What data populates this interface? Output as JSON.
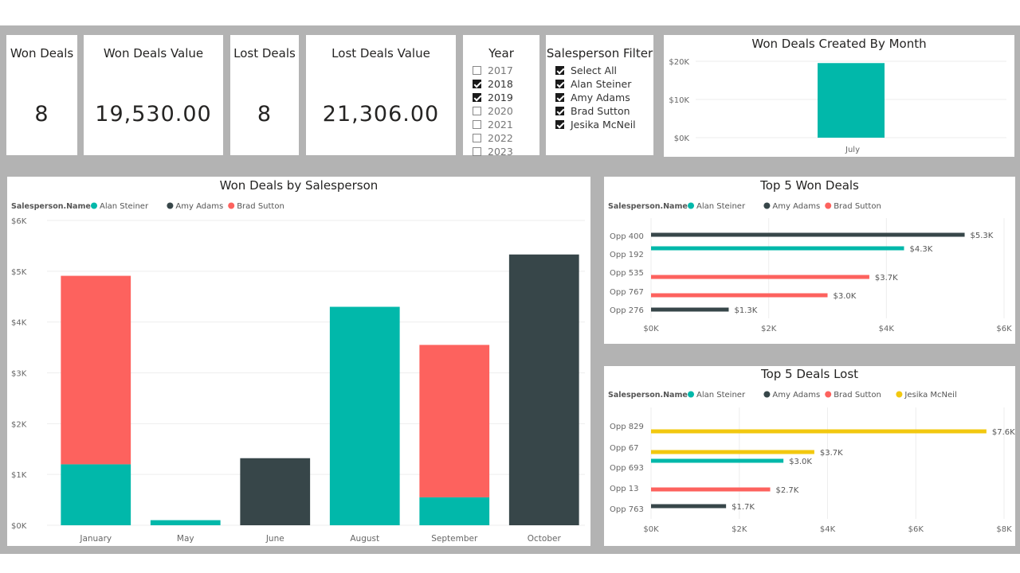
{
  "colors": {
    "alan": "#01b8aa",
    "amy": "#374649",
    "brad": "#fd625e",
    "jesika": "#f2c80f"
  },
  "kpis": {
    "won_deals": {
      "title": "Won Deals",
      "value": "8"
    },
    "won_value": {
      "title": "Won Deals Value",
      "value": "19,530.00"
    },
    "lost_deals": {
      "title": "Lost Deals",
      "value": "8"
    },
    "lost_value": {
      "title": "Lost Deals Value",
      "value": "21,306.00"
    }
  },
  "year_slicer": {
    "title": "Year",
    "items": [
      {
        "label": "2017",
        "checked": false
      },
      {
        "label": "2018",
        "checked": true
      },
      {
        "label": "2019",
        "checked": true
      },
      {
        "label": "2020",
        "checked": false
      },
      {
        "label": "2021",
        "checked": false
      },
      {
        "label": "2022",
        "checked": false
      },
      {
        "label": "2023",
        "checked": false
      }
    ]
  },
  "salesperson_slicer": {
    "title": "Salesperson Filter",
    "items": [
      {
        "label": "Select All",
        "checked": true
      },
      {
        "label": "Alan Steiner",
        "checked": true
      },
      {
        "label": "Amy Adams",
        "checked": true
      },
      {
        "label": "Brad Sutton",
        "checked": true
      },
      {
        "label": "Jesika McNeil",
        "checked": true
      }
    ]
  },
  "chart_data": [
    {
      "id": "monthly",
      "type": "bar",
      "title": "Won Deals Created By Month",
      "categories": [
        "July"
      ],
      "values": [
        19530
      ],
      "ylim": [
        0,
        20000
      ],
      "yticks": [
        0,
        10000,
        20000
      ],
      "ytick_labels": [
        "$0K",
        "$10K",
        "$20K"
      ]
    },
    {
      "id": "salesperson",
      "type": "bar",
      "stacked": true,
      "title": "Won Deals by  Salesperson",
      "legend_title": "Salesperson.Name",
      "categories": [
        "January",
        "May",
        "June",
        "August",
        "September",
        "October"
      ],
      "series": [
        {
          "name": "Alan Steiner",
          "color_key": "alan",
          "values": [
            1200,
            100,
            0,
            4300,
            550,
            0
          ]
        },
        {
          "name": "Amy Adams",
          "color_key": "amy",
          "values": [
            0,
            0,
            1320,
            0,
            0,
            5330
          ]
        },
        {
          "name": "Brad Sutton",
          "color_key": "brad",
          "values": [
            3710,
            0,
            0,
            0,
            3000,
            0
          ]
        }
      ],
      "ylim": [
        0,
        6000
      ],
      "yticks": [
        0,
        1000,
        2000,
        3000,
        4000,
        5000,
        6000
      ],
      "ytick_labels": [
        "$0K",
        "$1K",
        "$2K",
        "$3K",
        "$4K",
        "$5K",
        "$6K"
      ]
    },
    {
      "id": "top_won",
      "type": "bar",
      "orientation": "horizontal",
      "title": "Top 5 Won Deals",
      "legend_title": "Salesperson.Name",
      "legend": [
        {
          "name": "Alan Steiner",
          "color_key": "alan"
        },
        {
          "name": "Amy Adams",
          "color_key": "amy"
        },
        {
          "name": "Brad Sutton",
          "color_key": "brad"
        }
      ],
      "categories": [
        "Opp 400",
        "Opp 192",
        "Opp 535",
        "Opp 767",
        "Opp 276"
      ],
      "bars": [
        {
          "category": "Opp 400",
          "color_key": "amy",
          "value": 5330,
          "label": "$5.3K"
        },
        {
          "category": "Opp 192",
          "color_key": "alan",
          "value": 4300,
          "label": "$4.3K"
        },
        {
          "category": "Opp 535",
          "color_key": "brad",
          "value": 3710,
          "label": "$3.7K"
        },
        {
          "category": "Opp 767",
          "color_key": "brad",
          "value": 3000,
          "label": "$3.0K"
        },
        {
          "category": "Opp 276",
          "color_key": "amy",
          "value": 1320,
          "label": "$1.3K"
        }
      ],
      "xlim": [
        0,
        6000
      ],
      "xticks": [
        0,
        2000,
        4000,
        6000
      ],
      "xtick_labels": [
        "$0K",
        "$2K",
        "$4K",
        "$6K"
      ]
    },
    {
      "id": "top_lost",
      "type": "bar",
      "orientation": "horizontal",
      "title": "Top 5 Deals Lost",
      "legend_title": "Salesperson.Name",
      "legend": [
        {
          "name": "Alan Steiner",
          "color_key": "alan"
        },
        {
          "name": "Amy Adams",
          "color_key": "amy"
        },
        {
          "name": "Brad Sutton",
          "color_key": "brad"
        },
        {
          "name": "Jesika McNeil",
          "color_key": "jesika"
        }
      ],
      "categories": [
        "Opp 829",
        "Opp 67",
        "Opp 693",
        "Opp 13",
        "Opp 763"
      ],
      "bars": [
        {
          "category": "Opp 829",
          "color_key": "jesika",
          "value": 7600,
          "label": "$7.6K"
        },
        {
          "category": "Opp 67",
          "color_key": "jesika",
          "value": 3700,
          "label": "$3.7K"
        },
        {
          "category": "Opp 693",
          "color_key": "alan",
          "value": 3000,
          "label": "$3.0K"
        },
        {
          "category": "Opp 13",
          "color_key": "brad",
          "value": 2700,
          "label": "$2.7K"
        },
        {
          "category": "Opp 763",
          "color_key": "amy",
          "value": 1700,
          "label": "$1.7K"
        }
      ],
      "xlim": [
        0,
        8000
      ],
      "xticks": [
        0,
        2000,
        4000,
        6000,
        8000
      ],
      "xtick_labels": [
        "$0K",
        "$2K",
        "$4K",
        "$6K",
        "$8K"
      ]
    }
  ]
}
